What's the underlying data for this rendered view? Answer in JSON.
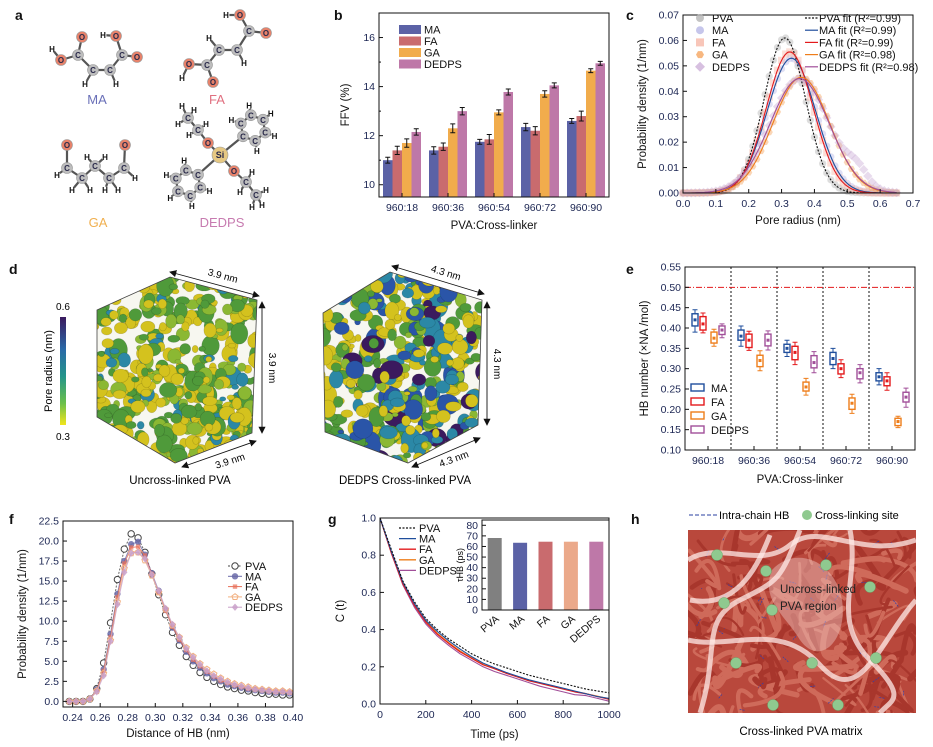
{
  "panel_labels": {
    "a": "a",
    "b": "b",
    "c": "c",
    "d": "d",
    "e": "e",
    "f": "f",
    "g": "g",
    "h": "h"
  },
  "panel_a": {
    "molecules": [
      "MA",
      "FA",
      "GA",
      "DEDPS"
    ],
    "molecule_colors": [
      "#6a70b8",
      "#e07080",
      "#f0b050",
      "#c77bb0"
    ],
    "atom_symbols": {
      "C": "C",
      "O": "O",
      "H": "H",
      "Si": "Si"
    }
  },
  "panel_d": {
    "colorbar": {
      "label": "Pore radius (nm)",
      "max": "0.6",
      "min": "0.3"
    },
    "boxes": [
      {
        "caption": "Uncross-linked PVA",
        "dimension": "3.9 nm"
      },
      {
        "caption": "DEDPS Cross-linked PVA",
        "dimension": "4.3 nm"
      }
    ]
  },
  "panel_h": {
    "legend_hb": "Intra-chain HB",
    "legend_site": "Cross-linking site",
    "region_line1": "Uncross-linked",
    "region_line2": "PVA region",
    "caption": "Cross-linked PVA matrix"
  },
  "chart_data": [
    {
      "panel": "b",
      "type": "bar",
      "xlabel": "PVA:Cross-linker",
      "ylabel": "FFV (%)",
      "categories": [
        "960:18",
        "960:36",
        "960:54",
        "960:72",
        "960:90"
      ],
      "ylim": [
        9.5,
        17
      ],
      "ytick_labels": [
        "10",
        "12",
        "14",
        "16"
      ],
      "legend": "top-left",
      "series": [
        {
          "name": "MA",
          "color": "#5b62a6",
          "values": [
            11.0,
            11.4,
            11.75,
            12.35,
            12.6
          ],
          "errors": [
            0.12,
            0.15,
            0.1,
            0.15,
            0.1
          ]
        },
        {
          "name": "FA",
          "color": "#c96b6e",
          "values": [
            11.4,
            11.55,
            11.85,
            12.2,
            12.8
          ],
          "errors": [
            0.17,
            0.15,
            0.2,
            0.17,
            0.2
          ]
        },
        {
          "name": "GA",
          "color": "#f1ac4c",
          "values": [
            11.7,
            12.3,
            12.95,
            13.7,
            14.65
          ],
          "errors": [
            0.17,
            0.18,
            0.1,
            0.13,
            0.08
          ]
        },
        {
          "name": "DEDPS",
          "color": "#be78a8",
          "values": [
            12.15,
            13.0,
            13.78,
            14.05,
            14.95
          ],
          "errors": [
            0.13,
            0.15,
            0.12,
            0.1,
            0.08
          ]
        }
      ]
    },
    {
      "panel": "c",
      "type": "scatter",
      "xlabel": "Pore radius (nm)",
      "ylabel": "Probability density (1/nm)",
      "xlim": [
        0,
        0.7
      ],
      "ylim": [
        0,
        0.07
      ],
      "xtick_labels": [
        "0.0",
        "0.1",
        "0.2",
        "0.3",
        "0.4",
        "0.5",
        "0.6",
        "0.7"
      ],
      "ytick_labels": [
        "0.00",
        "0.01",
        "0.02",
        "0.03",
        "0.04",
        "0.05",
        "0.06",
        "0.07"
      ],
      "series": [
        {
          "name": "PVA",
          "fit_label": "PVA fit (R²=0.99)",
          "marker": "circle",
          "marker_color": "#b4b4b4",
          "line_color": "#111111",
          "line_style": "dotted",
          "peak": 0.061,
          "center": 0.31,
          "sigma": 0.063
        },
        {
          "name": "MA",
          "fit_label": "MA fit (R²=0.99)",
          "marker": "circle",
          "marker_color": "#b8b8e6",
          "line_color": "#1f4e9c",
          "line_style": "solid",
          "peak": 0.053,
          "center": 0.33,
          "sigma": 0.074
        },
        {
          "name": "FA",
          "fit_label": "FA fit (R²=0.99)",
          "marker": "square",
          "marker_color": "#f6b8a8",
          "line_color": "#e31a1c",
          "line_style": "solid",
          "peak": 0.0555,
          "center": 0.325,
          "sigma": 0.071
        },
        {
          "name": "GA",
          "fit_label": "GA fit (R²=0.98)",
          "marker": "hexagon",
          "marker_color": "#f5a560",
          "line_color": "#ee7d1a",
          "line_style": "solid",
          "peak": 0.0455,
          "center": 0.36,
          "sigma": 0.086
        },
        {
          "name": "DEDPS",
          "fit_label": "DEDPS fit (R²=0.98)",
          "marker": "diamond",
          "marker_color": "#cdb0d8",
          "line_color": "#a14f99",
          "line_style": "solid",
          "peak": 0.045,
          "center": 0.355,
          "sigma": 0.09
        }
      ]
    },
    {
      "panel": "e",
      "type": "box",
      "xlabel": "PVA:Cross-linker",
      "ylabel": "HB number (×NA /mol)",
      "categories": [
        "960:18",
        "960:36",
        "960:54",
        "960:72",
        "960:90"
      ],
      "ylim": [
        0.1,
        0.55
      ],
      "ytick_labels": [
        "0.10",
        "0.15",
        "0.20",
        "0.25",
        "0.30",
        "0.35",
        "0.40",
        "0.45",
        "0.50",
        "0.55"
      ],
      "reference_line": 0.5,
      "reference_color": "#e31a1c",
      "legend": "bottom-left",
      "series": [
        {
          "name": "MA",
          "color": "#1f4e9c",
          "boxes": [
            [
              0.39,
              0.405,
              0.42,
              0.435,
              0.445
            ],
            [
              0.355,
              0.37,
              0.38,
              0.395,
              0.405
            ],
            [
              0.33,
              0.34,
              0.35,
              0.36,
              0.37
            ],
            [
              0.3,
              0.31,
              0.325,
              0.34,
              0.35
            ],
            [
              0.26,
              0.27,
              0.28,
              0.29,
              0.3
            ]
          ]
        },
        {
          "name": "FA",
          "color": "#e31a1c",
          "boxes": [
            [
              0.388,
              0.395,
              0.41,
              0.428,
              0.437
            ],
            [
              0.345,
              0.352,
              0.37,
              0.385,
              0.392
            ],
            [
              0.31,
              0.322,
              0.34,
              0.355,
              0.365
            ],
            [
              0.278,
              0.287,
              0.3,
              0.312,
              0.322
            ],
            [
              0.247,
              0.258,
              0.27,
              0.28,
              0.29
            ]
          ]
        },
        {
          "name": "GA",
          "color": "#ee7d1a",
          "boxes": [
            [
              0.355,
              0.363,
              0.375,
              0.39,
              0.397
            ],
            [
              0.295,
              0.305,
              0.32,
              0.333,
              0.344
            ],
            [
              0.235,
              0.245,
              0.255,
              0.267,
              0.276
            ],
            [
              0.19,
              0.2,
              0.215,
              0.228,
              0.237
            ],
            [
              0.155,
              0.16,
              0.17,
              0.178,
              0.183
            ]
          ]
        },
        {
          "name": "DEDPS",
          "color": "#a14f99",
          "boxes": [
            [
              0.376,
              0.384,
              0.395,
              0.405,
              0.41
            ],
            [
              0.346,
              0.356,
              0.37,
              0.385,
              0.393
            ],
            [
              0.29,
              0.302,
              0.315,
              0.332,
              0.342
            ],
            [
              0.265,
              0.275,
              0.29,
              0.3,
              0.31
            ],
            [
              0.205,
              0.218,
              0.23,
              0.242,
              0.252
            ]
          ]
        }
      ]
    },
    {
      "panel": "f",
      "type": "line",
      "xlabel": "Distance of HB (nm)",
      "ylabel": "Probability density (1/nm)",
      "xlim": [
        0.233,
        0.4
      ],
      "ylim": [
        -0.7,
        22.5
      ],
      "xtick_labels": [
        "0.24",
        "0.26",
        "0.28",
        "0.30",
        "0.32",
        "0.34",
        "0.36",
        "0.38",
        "0.40"
      ],
      "ytick_labels": [
        "0.0",
        "2.5",
        "5.0",
        "7.5",
        "10.0",
        "12.5",
        "15.0",
        "17.5",
        "20.0",
        "22.5"
      ],
      "x": [
        0.2375,
        0.2425,
        0.2475,
        0.2525,
        0.2575,
        0.2625,
        0.2675,
        0.2725,
        0.2775,
        0.2825,
        0.2875,
        0.2925,
        0.2975,
        0.3025,
        0.3075,
        0.3125,
        0.3175,
        0.3225,
        0.3275,
        0.3325,
        0.3375,
        0.3425,
        0.3475,
        0.3525,
        0.3575,
        0.3625,
        0.3675,
        0.3725,
        0.3775,
        0.3825,
        0.3875,
        0.3925,
        0.3975
      ],
      "series": [
        {
          "name": "PVA",
          "marker": "open-circle",
          "color": "#444444",
          "values": [
            0,
            0,
            0,
            0.3,
            1.6,
            4.8,
            9.8,
            15.2,
            19.0,
            20.9,
            20.4,
            18.6,
            15.9,
            13.3,
            10.8,
            8.6,
            7.0,
            5.6,
            4.5,
            3.6,
            3.0,
            2.5,
            2.1,
            1.8,
            1.6,
            1.4,
            1.3,
            1.1,
            1.0,
            0.9,
            0.9,
            0.8,
            0.8
          ]
        },
        {
          "name": "MA",
          "marker": "circle",
          "color": "#6a6aa8",
          "values": [
            0,
            0,
            0,
            0.3,
            1.5,
            4.0,
            8.4,
            13.4,
            17.5,
            19.6,
            19.9,
            18.3,
            16.0,
            13.8,
            11.4,
            9.2,
            7.6,
            6.2,
            5.0,
            4.2,
            3.5,
            2.9,
            2.5,
            2.1,
            1.9,
            1.7,
            1.5,
            1.4,
            1.3,
            1.2,
            1.1,
            1.1,
            1.0
          ]
        },
        {
          "name": "FA",
          "marker": "square",
          "color": "#e8705a",
          "values": [
            0,
            0,
            0,
            0.3,
            1.4,
            3.8,
            8.0,
            13.0,
            17.2,
            19.2,
            19.3,
            18.2,
            15.9,
            13.6,
            11.3,
            9.3,
            7.7,
            6.4,
            5.2,
            4.4,
            3.7,
            3.1,
            2.6,
            2.3,
            2.0,
            1.8,
            1.6,
            1.5,
            1.4,
            1.3,
            1.2,
            1.2,
            1.1
          ]
        },
        {
          "name": "GA",
          "marker": "open-pentagon",
          "color": "#f2b080",
          "values": [
            0,
            0,
            0,
            0.3,
            1.3,
            3.5,
            7.6,
            12.4,
            16.6,
            18.5,
            18.6,
            17.6,
            15.7,
            13.6,
            11.5,
            9.5,
            8.0,
            6.7,
            5.6,
            4.7,
            4.0,
            3.4,
            2.9,
            2.5,
            2.2,
            2.0,
            1.8,
            1.6,
            1.5,
            1.4,
            1.3,
            1.3,
            1.2
          ]
        },
        {
          "name": "DEDPS",
          "marker": "diamond",
          "color": "#c9a0c9",
          "values": [
            0,
            0,
            0,
            0.3,
            1.2,
            3.2,
            7.5,
            12.1,
            16.1,
            18.5,
            18.6,
            17.8,
            15.8,
            13.8,
            11.6,
            9.6,
            8.0,
            6.6,
            5.5,
            4.6,
            3.8,
            3.2,
            2.8,
            2.4,
            2.1,
            1.9,
            1.7,
            1.5,
            1.4,
            1.3,
            1.2,
            1.2,
            1.1
          ]
        }
      ]
    },
    {
      "panel": "g",
      "type": "line",
      "xlabel": "Time (ps)",
      "ylabel": "C (t)",
      "xlim": [
        0,
        1000
      ],
      "ylim": [
        0,
        1.0
      ],
      "xtick_labels": [
        "0",
        "200",
        "400",
        "600",
        "800",
        "1000"
      ],
      "ytick_labels": [
        "0.0",
        "0.2",
        "0.4",
        "0.6",
        "0.8",
        "1.0"
      ],
      "x": [
        0,
        50,
        100,
        150,
        200,
        250,
        300,
        350,
        400,
        450,
        500,
        550,
        600,
        650,
        700,
        750,
        800,
        850,
        900,
        950,
        1000
      ],
      "series": [
        {
          "name": "PVA",
          "color": "#111111",
          "line_style": "dotted",
          "values": [
            1,
            0.83,
            0.66,
            0.55,
            0.46,
            0.4,
            0.35,
            0.31,
            0.27,
            0.24,
            0.215,
            0.195,
            0.175,
            0.155,
            0.14,
            0.125,
            0.11,
            0.095,
            0.08,
            0.07,
            0.06
          ]
        },
        {
          "name": "MA",
          "color": "#1f4e9c",
          "line_style": "solid",
          "values": [
            1,
            0.82,
            0.655,
            0.54,
            0.45,
            0.39,
            0.34,
            0.295,
            0.255,
            0.22,
            0.195,
            0.17,
            0.15,
            0.13,
            0.115,
            0.1,
            0.085,
            0.07,
            0.055,
            0.04,
            0.03
          ]
        },
        {
          "name": "FA",
          "color": "#e31a1c",
          "line_style": "solid",
          "values": [
            1,
            0.81,
            0.645,
            0.53,
            0.44,
            0.375,
            0.325,
            0.28,
            0.245,
            0.21,
            0.19,
            0.165,
            0.145,
            0.125,
            0.11,
            0.095,
            0.08,
            0.065,
            0.055,
            0.04,
            0.025
          ]
        },
        {
          "name": "GA",
          "color": "#ee7d1a",
          "line_style": "solid",
          "values": [
            1,
            0.815,
            0.65,
            0.535,
            0.445,
            0.38,
            0.33,
            0.285,
            0.248,
            0.213,
            0.19,
            0.168,
            0.148,
            0.128,
            0.112,
            0.097,
            0.082,
            0.068,
            0.056,
            0.042,
            0.028
          ]
        },
        {
          "name": "DEDPS",
          "color": "#a14f99",
          "line_style": "solid",
          "values": [
            1,
            0.81,
            0.64,
            0.52,
            0.43,
            0.365,
            0.315,
            0.27,
            0.235,
            0.2,
            0.175,
            0.155,
            0.135,
            0.115,
            0.095,
            0.08,
            0.065,
            0.05,
            0.045,
            0.03,
            0.015
          ]
        }
      ]
    },
    {
      "panel": "g-inset",
      "type": "bar",
      "ylabel": "τHB (ps)",
      "categories": [
        "PVA",
        "MA",
        "FA",
        "GA",
        "DEDPS"
      ],
      "colors": [
        "#808080",
        "#5b62a6",
        "#c96b6e",
        "#eba98a",
        "#be78a8"
      ],
      "values": [
        68,
        63.5,
        64.5,
        64.5,
        64.5
      ],
      "ylim": [
        0,
        85
      ],
      "ytick_labels": [
        "0",
        "10",
        "20",
        "30",
        "40",
        "50",
        "60",
        "70",
        "80"
      ]
    }
  ]
}
